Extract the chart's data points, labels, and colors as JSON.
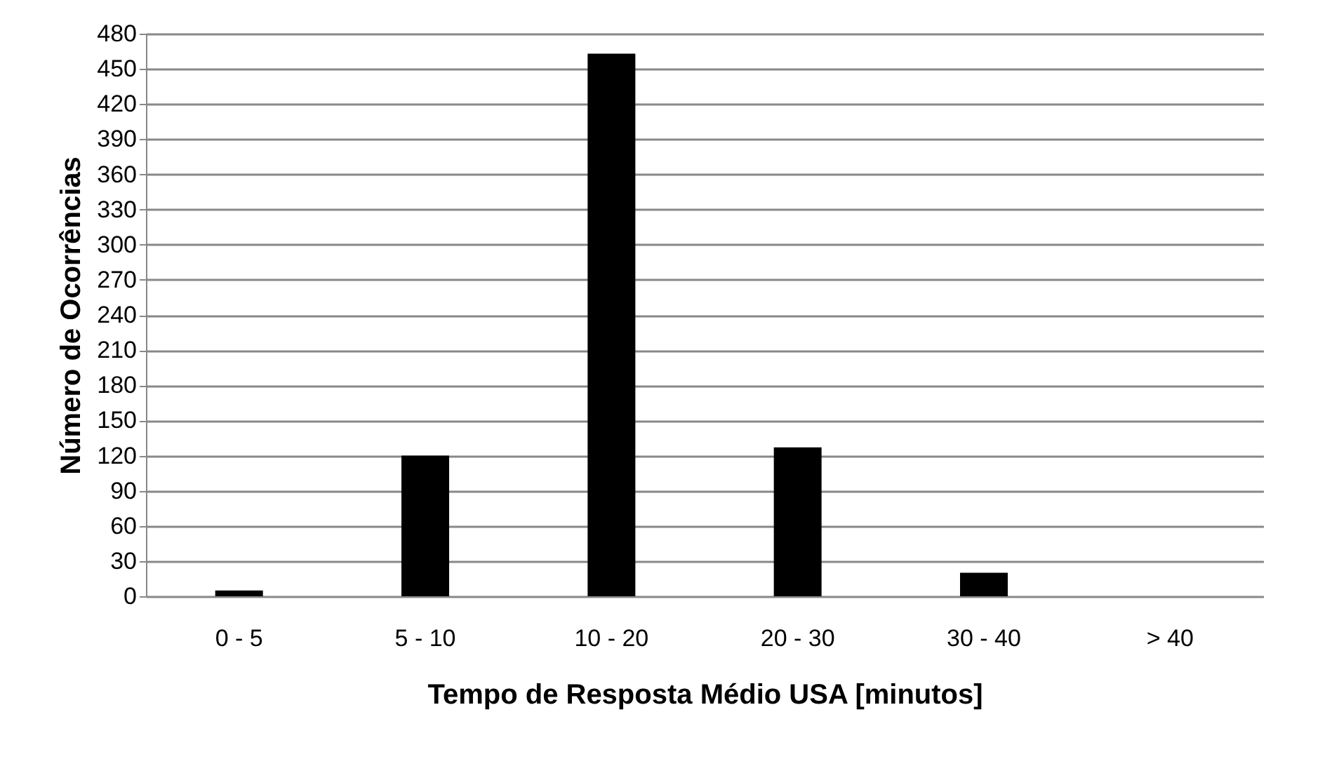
{
  "chart_data": {
    "type": "bar",
    "xlabel": "Tempo de Resposta Médio USA [minutos]",
    "ylabel": "Número de Ocorrências",
    "categories": [
      "0 - 5",
      "5 - 10",
      "10 - 20",
      "20 - 30",
      "30 - 40",
      "> 40"
    ],
    "values": [
      5,
      120,
      463,
      127,
      20,
      0
    ],
    "color": "#000000",
    "ylim": [
      0,
      480
    ],
    "yticks": [
      0,
      30,
      60,
      90,
      120,
      150,
      180,
      210,
      240,
      270,
      300,
      330,
      360,
      390,
      420,
      450,
      480
    ],
    "grid": "y"
  }
}
